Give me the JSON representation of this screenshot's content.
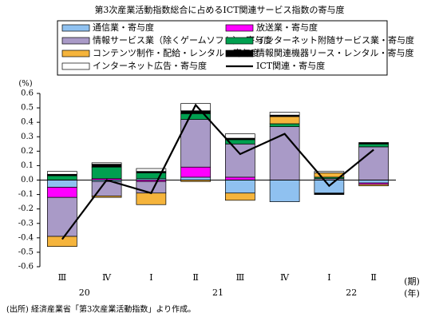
{
  "chart_data": {
    "type": "stacked_bar_line",
    "title": "第3次産業活動指数総合に占めるICT関連サービス指数の寄与度",
    "y_unit": "(%)",
    "categories": [
      "Ⅲ",
      "Ⅳ",
      "Ⅰ",
      "Ⅱ",
      "Ⅲ",
      "Ⅳ",
      "Ⅰ",
      "Ⅱ"
    ],
    "year_labels": [
      "20",
      "21",
      "22"
    ],
    "x_axis_labels": [
      "(期)",
      "(年)"
    ],
    "source": "(出所) 経済産業省「第3次産業活動指数」より作成。",
    "ylim": [
      -0.6,
      0.6
    ],
    "yticks": [
      -0.6,
      -0.5,
      -0.4,
      -0.3,
      -0.2,
      -0.1,
      {
        "value": 0,
        "label": "0.0"
      },
      0.1,
      0.2,
      0.3,
      0.4,
      0.5,
      0.6
    ],
    "series": [
      {
        "name": "通信業・寄与度",
        "type": "bar",
        "color": "#8fc1f0",
        "values": [
          -0.05,
          -0.01,
          0.01,
          0.02,
          -0.09,
          -0.15,
          -0.09,
          -0.02
        ]
      },
      {
        "name": "放送業・寄与度",
        "type": "bar",
        "color": "#ff00ff",
        "values": [
          -0.07,
          0.01,
          -0.01,
          0.07,
          0.02,
          0.0,
          0.0,
          -0.01
        ]
      },
      {
        "name": "情報サービス業（除くゲームソフト）・寄与度",
        "type": "bar",
        "color": "#a99ac7",
        "values": [
          -0.27,
          -0.1,
          -0.08,
          0.33,
          0.23,
          0.37,
          0.01,
          0.23
        ]
      },
      {
        "name": "インターネット附随サービス業・寄与度",
        "type": "bar",
        "color": "#00a050",
        "values": [
          0.03,
          0.08,
          0.04,
          0.04,
          0.03,
          0.02,
          0.01,
          0.02
        ]
      },
      {
        "name": "コンテンツ制作・配給・レンタル・寄与度",
        "type": "bar",
        "color": "#f5b43c",
        "values": [
          -0.07,
          -0.01,
          -0.08,
          -0.01,
          -0.05,
          0.05,
          0.03,
          -0.01
        ]
      },
      {
        "name": "情報関連機器リース・レンタル・寄与度",
        "type": "bar",
        "color": "#000000",
        "values": [
          0.01,
          0.02,
          0.01,
          0.02,
          0.01,
          0.01,
          -0.01,
          0.01
        ]
      },
      {
        "name": "インターネット広告・寄与度",
        "type": "bar",
        "color": "#ffffff",
        "values": [
          0.02,
          0.01,
          0.02,
          0.05,
          0.03,
          0.02,
          0.01,
          0.0
        ]
      },
      {
        "name": "ICT関連・寄与度",
        "type": "line",
        "color": "#000000",
        "values": [
          -0.41,
          0.0,
          -0.09,
          0.52,
          0.18,
          0.32,
          -0.04,
          0.21
        ]
      }
    ]
  }
}
